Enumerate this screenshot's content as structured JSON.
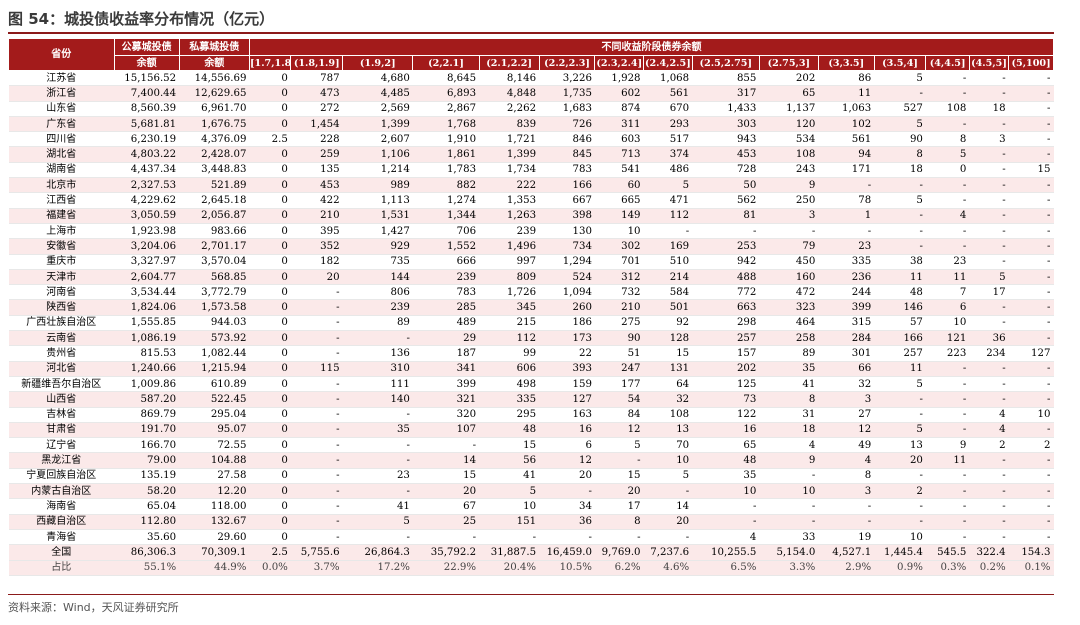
{
  "title": "图 54：城投债收益率分布情况（亿元）",
  "source": "资料来源：Wind，天风证券研究所",
  "header": {
    "province": "省份",
    "public_line1": "公募城投债",
    "public_line2": "余额",
    "private_line1": "私募城投债",
    "private_line2": "余额",
    "group": "不同收益阶段债券余额",
    "ranges": [
      "[1.7,1.8]",
      "(1.8,1.9]",
      "(1.9,2]",
      "(2,2.1]",
      "(2.1,2.2]",
      "(2.2,2.3]",
      "(2.3,2.4]",
      "(2.4,2.5]",
      "(2.5,2.75]",
      "(2.75,3]",
      "(3,3.5]",
      "(3.5,4]",
      "(4,4.5]",
      "(4.5,5]",
      "(5,100]"
    ]
  },
  "rows": [
    [
      "江苏省",
      "15,156.52",
      "14,556.69",
      "0",
      "787",
      "4,680",
      "8,645",
      "8,146",
      "3,226",
      "1,928",
      "1,068",
      "855",
      "202",
      "86",
      "5",
      "-",
      "-",
      "-"
    ],
    [
      "浙江省",
      "7,400.44",
      "12,629.65",
      "0",
      "473",
      "4,485",
      "6,893",
      "4,848",
      "1,735",
      "602",
      "561",
      "317",
      "65",
      "11",
      "-",
      "-",
      "-",
      "-"
    ],
    [
      "山东省",
      "8,560.39",
      "6,961.70",
      "0",
      "272",
      "2,569",
      "2,867",
      "2,262",
      "1,683",
      "874",
      "670",
      "1,433",
      "1,137",
      "1,063",
      "527",
      "108",
      "18",
      "-"
    ],
    [
      "广东省",
      "5,681.81",
      "1,676.75",
      "0",
      "1,454",
      "1,399",
      "1,768",
      "839",
      "726",
      "311",
      "293",
      "303",
      "120",
      "102",
      "5",
      "-",
      "-",
      "-"
    ],
    [
      "四川省",
      "6,230.19",
      "4,376.09",
      "2.5",
      "228",
      "2,607",
      "1,910",
      "1,721",
      "846",
      "603",
      "517",
      "943",
      "534",
      "561",
      "90",
      "8",
      "3",
      "-"
    ],
    [
      "湖北省",
      "4,803.22",
      "2,428.07",
      "0",
      "259",
      "1,106",
      "1,861",
      "1,399",
      "845",
      "713",
      "374",
      "453",
      "108",
      "94",
      "8",
      "5",
      "-",
      "-"
    ],
    [
      "湖南省",
      "4,437.34",
      "3,448.83",
      "0",
      "135",
      "1,214",
      "1,783",
      "1,734",
      "783",
      "541",
      "486",
      "728",
      "243",
      "171",
      "18",
      "0",
      "-",
      "15"
    ],
    [
      "北京市",
      "2,327.53",
      "521.89",
      "0",
      "453",
      "989",
      "882",
      "222",
      "166",
      "60",
      "5",
      "50",
      "9",
      "-",
      "-",
      "-",
      "-",
      "-"
    ],
    [
      "江西省",
      "4,229.62",
      "2,645.18",
      "0",
      "422",
      "1,113",
      "1,274",
      "1,353",
      "667",
      "665",
      "471",
      "562",
      "250",
      "78",
      "5",
      "-",
      "-",
      "-"
    ],
    [
      "福建省",
      "3,050.59",
      "2,056.87",
      "0",
      "210",
      "1,531",
      "1,344",
      "1,263",
      "398",
      "149",
      "112",
      "81",
      "3",
      "1",
      "-",
      "4",
      "-",
      "-"
    ],
    [
      "上海市",
      "1,923.98",
      "983.66",
      "0",
      "395",
      "1,427",
      "706",
      "239",
      "130",
      "10",
      "-",
      "-",
      "-",
      "-",
      "-",
      "-",
      "-",
      "-"
    ],
    [
      "安徽省",
      "3,204.06",
      "2,701.17",
      "0",
      "352",
      "929",
      "1,552",
      "1,496",
      "734",
      "302",
      "169",
      "253",
      "79",
      "23",
      "-",
      "-",
      "-",
      "-"
    ],
    [
      "重庆市",
      "3,327.97",
      "3,570.04",
      "0",
      "182",
      "735",
      "666",
      "997",
      "1,294",
      "701",
      "510",
      "942",
      "450",
      "335",
      "38",
      "23",
      "-",
      "-"
    ],
    [
      "天津市",
      "2,604.77",
      "568.85",
      "0",
      "20",
      "144",
      "239",
      "809",
      "524",
      "312",
      "214",
      "488",
      "160",
      "236",
      "11",
      "11",
      "5",
      "-"
    ],
    [
      "河南省",
      "3,534.44",
      "3,772.79",
      "0",
      "-",
      "806",
      "783",
      "1,726",
      "1,094",
      "732",
      "584",
      "772",
      "472",
      "244",
      "48",
      "7",
      "17",
      "-"
    ],
    [
      "陕西省",
      "1,824.06",
      "1,573.58",
      "0",
      "-",
      "239",
      "285",
      "345",
      "260",
      "210",
      "501",
      "663",
      "323",
      "399",
      "146",
      "6",
      "-",
      "-"
    ],
    [
      "广西壮族自治区",
      "1,555.85",
      "944.03",
      "0",
      "-",
      "89",
      "489",
      "215",
      "186",
      "275",
      "92",
      "298",
      "464",
      "315",
      "57",
      "10",
      "-",
      "-"
    ],
    [
      "云南省",
      "1,086.19",
      "573.92",
      "0",
      "-",
      "-",
      "29",
      "112",
      "173",
      "90",
      "128",
      "257",
      "258",
      "284",
      "166",
      "121",
      "36",
      "-"
    ],
    [
      "贵州省",
      "815.53",
      "1,082.44",
      "0",
      "-",
      "136",
      "187",
      "99",
      "22",
      "51",
      "15",
      "157",
      "89",
      "301",
      "257",
      "223",
      "234",
      "127"
    ],
    [
      "河北省",
      "1,240.66",
      "1,215.94",
      "0",
      "115",
      "310",
      "341",
      "606",
      "393",
      "247",
      "131",
      "202",
      "35",
      "66",
      "11",
      "-",
      "-",
      "-"
    ],
    [
      "新疆维吾尔自治区",
      "1,009.86",
      "610.89",
      "0",
      "-",
      "111",
      "399",
      "498",
      "159",
      "177",
      "64",
      "125",
      "41",
      "32",
      "5",
      "-",
      "-",
      "-"
    ],
    [
      "山西省",
      "587.20",
      "522.45",
      "0",
      "-",
      "140",
      "321",
      "335",
      "127",
      "54",
      "32",
      "73",
      "8",
      "3",
      "-",
      "-",
      "-",
      "-"
    ],
    [
      "吉林省",
      "869.79",
      "295.04",
      "0",
      "-",
      "-",
      "320",
      "295",
      "163",
      "84",
      "108",
      "122",
      "31",
      "27",
      "-",
      "-",
      "4",
      "10"
    ],
    [
      "甘肃省",
      "191.70",
      "95.07",
      "0",
      "-",
      "35",
      "107",
      "48",
      "16",
      "12",
      "13",
      "16",
      "18",
      "12",
      "5",
      "-",
      "4",
      "-"
    ],
    [
      "辽宁省",
      "166.70",
      "72.55",
      "0",
      "-",
      "-",
      "-",
      "15",
      "6",
      "5",
      "70",
      "65",
      "4",
      "49",
      "13",
      "9",
      "2",
      "2"
    ],
    [
      "黑龙江省",
      "79.00",
      "104.88",
      "0",
      "-",
      "-",
      "14",
      "56",
      "12",
      "-",
      "10",
      "48",
      "9",
      "4",
      "20",
      "11",
      "-",
      "-"
    ],
    [
      "宁夏回族自治区",
      "135.19",
      "27.58",
      "0",
      "-",
      "23",
      "15",
      "41",
      "20",
      "15",
      "5",
      "35",
      "-",
      "8",
      "-",
      "-",
      "-",
      "-"
    ],
    [
      "内蒙古自治区",
      "58.20",
      "12.20",
      "0",
      "-",
      "-",
      "20",
      "5",
      "-",
      "20",
      "-",
      "10",
      "10",
      "3",
      "2",
      "-",
      "-",
      "-"
    ],
    [
      "海南省",
      "65.04",
      "118.00",
      "0",
      "-",
      "41",
      "67",
      "10",
      "34",
      "17",
      "14",
      "-",
      "-",
      "-",
      "-",
      "-",
      "-",
      "-"
    ],
    [
      "西藏自治区",
      "112.80",
      "132.67",
      "0",
      "-",
      "5",
      "25",
      "151",
      "36",
      "8",
      "20",
      "-",
      "-",
      "-",
      "-",
      "-",
      "-",
      "-"
    ],
    [
      "青海省",
      "35.60",
      "29.60",
      "0",
      "-",
      "-",
      "-",
      "-",
      "-",
      "-",
      "-",
      "4",
      "33",
      "19",
      "10",
      "-",
      "-",
      "-"
    ]
  ],
  "total": [
    "全国",
    "86,306.3",
    "70,309.1",
    "2.5",
    "5,755.6",
    "26,864.3",
    "35,792.2",
    "31,887.5",
    "16,459.0",
    "9,769.0",
    "7,237.6",
    "10,255.5",
    "5,154.0",
    "4,527.1",
    "1,445.4",
    "545.5",
    "322.4",
    "154.3"
  ],
  "share": [
    "占比",
    "55.1%",
    "44.9%",
    "0.0%",
    "3.7%",
    "17.2%",
    "22.9%",
    "20.4%",
    "10.5%",
    "6.2%",
    "4.6%",
    "6.5%",
    "3.3%",
    "2.9%",
    "0.9%",
    "0.3%",
    "0.2%",
    "0.1%"
  ],
  "colors": {
    "header_bg": "#a31b1b",
    "stripe": "#fbe9e9",
    "title_rule": "#8b1a1a"
  }
}
